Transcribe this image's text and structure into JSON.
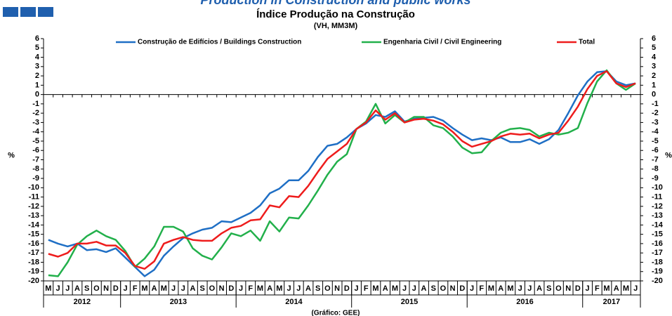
{
  "chart_data": {
    "type": "line",
    "supertitle": "Production in Construction and public works",
    "title": "Índice Produção na Construção",
    "subtitle": "(VH, MM3M)",
    "ylabel": "%",
    "source": "(Gráfico: GEE)",
    "legend": "top",
    "categories": [
      "M",
      "J",
      "J",
      "A",
      "S",
      "O",
      "N",
      "D",
      "J",
      "F",
      "M",
      "A",
      "M",
      "J",
      "J",
      "A",
      "S",
      "O",
      "N",
      "D",
      "J",
      "F",
      "M",
      "A",
      "M",
      "J",
      "J",
      "A",
      "S",
      "O",
      "N",
      "D",
      "J",
      "F",
      "M",
      "A",
      "M",
      "J",
      "J",
      "A",
      "S",
      "O",
      "N",
      "D",
      "J",
      "F",
      "M",
      "A",
      "M",
      "J",
      "J",
      "A",
      "S",
      "O",
      "N",
      "D",
      "J",
      "F",
      "M",
      "A",
      "M",
      "J"
    ],
    "years": [
      "2012",
      "2013",
      "2014",
      "2015",
      "2016",
      "2017"
    ],
    "ylim": [
      -20,
      6
    ],
    "yticks": [
      -20,
      -19,
      -18,
      -17,
      -16,
      -15,
      -14,
      -13,
      -12,
      -11,
      -10,
      -9,
      -8,
      -7,
      -6,
      -5,
      -4,
      -3,
      -2,
      -1,
      0,
      1,
      2,
      3,
      4,
      5,
      6
    ],
    "series": [
      {
        "name": "Construção de Edifícios / Buildings Construction",
        "color": "#1f6fc5",
        "values": [
          -15.6,
          -16.0,
          -16.3,
          -16.0,
          -16.7,
          -16.6,
          -16.9,
          -16.5,
          -17.5,
          -18.5,
          -19.5,
          -18.8,
          -17.3,
          -16.3,
          -15.4,
          -14.9,
          -14.5,
          -14.3,
          -13.6,
          -13.7,
          -13.2,
          -12.7,
          -11.9,
          -10.6,
          -10.1,
          -9.2,
          -9.2,
          -8.2,
          -6.7,
          -5.5,
          -5.3,
          -4.6,
          -3.7,
          -3.1,
          -2.2,
          -2.4,
          -1.8,
          -2.9,
          -2.6,
          -2.5,
          -2.4,
          -2.8,
          -3.6,
          -4.3,
          -4.9,
          -4.7,
          -4.9,
          -4.6,
          -5.1,
          -5.1,
          -4.8,
          -5.3,
          -4.8,
          -3.8,
          -2.0,
          -0.1,
          1.4,
          2.4,
          2.5,
          1.4,
          1.0,
          1.2
        ]
      },
      {
        "name": "Engenharia Civil / Civil Engineering",
        "color": "#22b04b",
        "values": [
          -19.4,
          -19.5,
          -18.0,
          -16.1,
          -15.2,
          -14.6,
          -15.2,
          -15.6,
          -16.8,
          -18.5,
          -17.6,
          -16.3,
          -14.2,
          -14.2,
          -14.7,
          -16.5,
          -17.3,
          -17.7,
          -16.4,
          -14.9,
          -15.2,
          -14.6,
          -15.7,
          -13.6,
          -14.7,
          -13.2,
          -13.3,
          -11.9,
          -10.3,
          -8.6,
          -7.2,
          -6.4,
          -3.7,
          -2.9,
          -1.0,
          -3.1,
          -2.2,
          -3.0,
          -2.4,
          -2.4,
          -3.3,
          -3.6,
          -4.5,
          -5.7,
          -6.3,
          -6.2,
          -5.0,
          -4.1,
          -3.7,
          -3.6,
          -3.8,
          -4.5,
          -4.1,
          -4.3,
          -4.1,
          -3.6,
          -0.9,
          1.4,
          2.6,
          1.2,
          0.5,
          1.2
        ]
      },
      {
        "name": "Total",
        "color": "#ee1c1c",
        "values": [
          -17.1,
          -17.4,
          -17.0,
          -16.0,
          -16.0,
          -15.8,
          -16.2,
          -16.2,
          -17.0,
          -18.4,
          -18.7,
          -17.9,
          -16.0,
          -15.6,
          -15.3,
          -15.6,
          -15.7,
          -15.7,
          -14.9,
          -14.3,
          -14.1,
          -13.5,
          -13.4,
          -11.9,
          -12.1,
          -10.9,
          -11.0,
          -9.8,
          -8.3,
          -6.9,
          -6.1,
          -5.3,
          -3.7,
          -3.0,
          -1.7,
          -2.7,
          -2.0,
          -3.0,
          -2.7,
          -2.6,
          -2.8,
          -3.2,
          -4.0,
          -5.0,
          -5.6,
          -5.3,
          -5.0,
          -4.5,
          -4.2,
          -4.3,
          -4.2,
          -4.7,
          -4.3,
          -4.1,
          -2.8,
          -1.3,
          0.6,
          2.0,
          2.5,
          1.2,
          0.8,
          1.2
        ]
      }
    ]
  }
}
